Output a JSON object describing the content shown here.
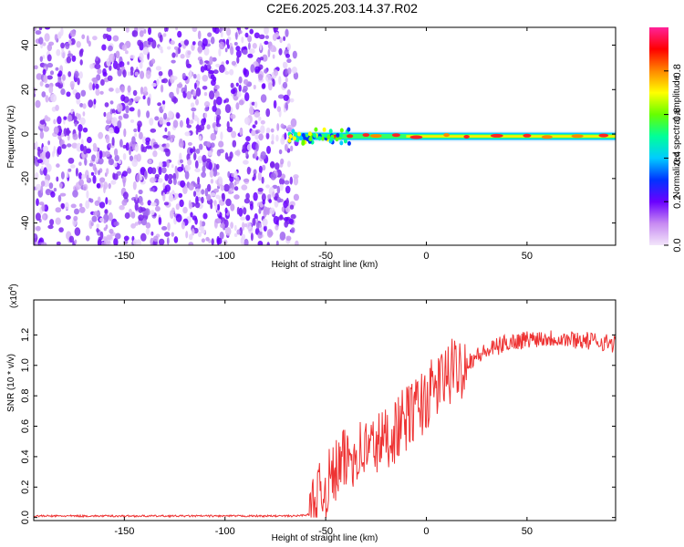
{
  "title": "C2E6.2025.203.14.37.R02",
  "chart_data": [
    {
      "type": "heatmap",
      "name": "spectrogram",
      "xlabel": "Height of straight line (km)",
      "ylabel": "Frequency (Hz)",
      "xlim": [
        -195,
        94
      ],
      "ylim": [
        -50,
        48
      ],
      "xticks": [
        -150,
        -100,
        -50,
        0,
        50
      ],
      "yticks": [
        -40,
        -20,
        0,
        20,
        40
      ],
      "noise_region_end_x": -68,
      "line_center_y": -1,
      "colorbar": {
        "label": "Normalized spectral amplitude",
        "range": [
          0,
          1
        ],
        "ticks": [
          "0.0",
          "0.2",
          "0.4",
          "0.6",
          "0.8"
        ],
        "colors": [
          "#f3e6fa",
          "#c78af2",
          "#6a00ff",
          "#0033ff",
          "#00ccff",
          "#00ff99",
          "#66ff00",
          "#ffff00",
          "#ff8800",
          "#ff0000",
          "#ff2299"
        ]
      }
    },
    {
      "type": "line",
      "name": "snr",
      "xlabel": "Height of straight line (km)",
      "ylabel": "SNR (10 * v/v)",
      "yscale_label": "(x10",
      "yscale_exp": "4",
      "xlim": [
        -195,
        94
      ],
      "ylim": [
        -0.02,
        1.43
      ],
      "xticks": [
        -150,
        -100,
        -50,
        0,
        50
      ],
      "yticks": [
        "0.0",
        "0.2",
        "0.4",
        "0.6",
        "0.8",
        "1.0",
        "1.2"
      ],
      "line_color": "#ee3333",
      "x": [
        -195,
        -170,
        -140,
        -110,
        -80,
        -65,
        -58,
        -54,
        -50,
        -45,
        -40,
        -35,
        -30,
        -25,
        -20,
        -15,
        -10,
        -5,
        0,
        5,
        10,
        15,
        20,
        25,
        30,
        35,
        40,
        45,
        50,
        55,
        60,
        65,
        70,
        75,
        80,
        85,
        94
      ],
      "y": [
        0.01,
        0.01,
        0.01,
        0.01,
        0.01,
        0.01,
        0.02,
        0.12,
        0.2,
        0.3,
        0.38,
        0.43,
        0.45,
        0.48,
        0.52,
        0.58,
        0.65,
        0.72,
        0.78,
        0.86,
        0.93,
        0.98,
        1.02,
        1.06,
        1.09,
        1.12,
        1.15,
        1.16,
        1.17,
        1.18,
        1.18,
        1.18,
        1.17,
        1.17,
        1.16,
        1.16,
        1.14
      ]
    }
  ]
}
